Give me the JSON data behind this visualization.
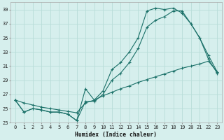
{
  "xlabel": "Humidex (Indice chaleur)",
  "bg_color": "#d6efed",
  "grid_color": "#b8dcd8",
  "line_color": "#1a7068",
  "xlim": [
    -0.5,
    23.5
  ],
  "ylim": [
    23,
    40
  ],
  "xticks": [
    0,
    1,
    2,
    3,
    4,
    5,
    6,
    7,
    8,
    9,
    10,
    11,
    12,
    13,
    14,
    15,
    16,
    17,
    18,
    19,
    20,
    21,
    22,
    23
  ],
  "yticks": [
    23,
    25,
    27,
    29,
    31,
    33,
    35,
    37,
    39
  ],
  "line1": {
    "x": [
      0,
      1,
      2,
      3,
      4,
      5,
      6,
      7,
      8,
      9,
      10,
      11,
      12,
      13,
      14,
      15,
      16,
      17,
      18,
      19,
      20,
      21,
      22,
      23
    ],
    "y": [
      26.2,
      24.5,
      25.0,
      24.8,
      24.5,
      24.5,
      24.2,
      23.3,
      27.8,
      26.2,
      27.5,
      30.5,
      31.5,
      33.0,
      35.0,
      38.8,
      39.2,
      39.0,
      39.2,
      38.5,
      37.0,
      35.0,
      32.0,
      30.0
    ]
  },
  "line2": {
    "x": [
      0,
      1,
      2,
      3,
      4,
      5,
      6,
      7,
      8,
      9,
      10,
      11,
      12,
      13,
      14,
      15,
      16,
      17,
      18,
      19,
      20,
      21,
      22,
      23
    ],
    "y": [
      26.2,
      24.5,
      25.0,
      24.8,
      24.5,
      24.5,
      24.2,
      23.3,
      26.0,
      26.0,
      27.0,
      29.0,
      30.0,
      31.5,
      33.5,
      36.5,
      37.5,
      38.0,
      38.8,
      38.8,
      37.0,
      35.0,
      32.5,
      30.2
    ]
  },
  "line3": {
    "x": [
      0,
      1,
      2,
      3,
      4,
      5,
      6,
      7,
      8,
      9,
      10,
      11,
      12,
      13,
      14,
      15,
      16,
      17,
      18,
      19,
      20,
      21,
      22,
      23
    ],
    "y": [
      26.2,
      25.8,
      25.5,
      25.2,
      25.0,
      24.8,
      24.6,
      24.4,
      25.8,
      26.2,
      26.8,
      27.3,
      27.8,
      28.2,
      28.7,
      29.1,
      29.5,
      29.9,
      30.3,
      30.7,
      31.0,
      31.3,
      31.7,
      30.2
    ]
  }
}
